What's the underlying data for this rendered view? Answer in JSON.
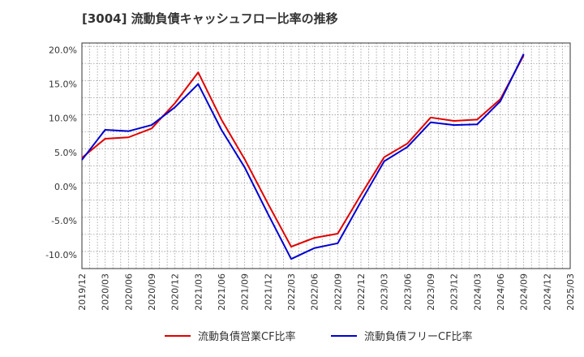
{
  "title": "[3004]  流動負債キャッシュフロー比率の推移",
  "chart_data": {
    "type": "line",
    "title": "[3004]  流動負債キャッシュフロー比率の推移",
    "xlabel": "",
    "ylabel": "",
    "ylim": [
      -12,
      21
    ],
    "y_ticks": [
      20,
      15,
      10,
      5,
      0,
      -5,
      -10
    ],
    "y_tick_labels": [
      "20.0%",
      "15.0%",
      "10.0%",
      "5.0%",
      "0.0%",
      "-5.0%",
      "-10.0%"
    ],
    "x_tick_labels": [
      "2019/12",
      "2020/03",
      "2020/06",
      "2020/09",
      "2020/12",
      "2021/03",
      "2021/06",
      "2021/09",
      "2021/12",
      "2022/03",
      "2022/06",
      "2022/09",
      "2022/12",
      "2023/03",
      "2023/06",
      "2023/09",
      "2023/12",
      "2024/03",
      "2024/06",
      "2024/09",
      "2024/12",
      "2025/03"
    ],
    "grid": true,
    "legend_position": "bottom",
    "series": [
      {
        "name": "流動負債営業CF比率",
        "color": "#e00000",
        "x": [
          "2019/12",
          "2020/03",
          "2020/06",
          "2020/09",
          "2020/12",
          "2021/03",
          "2021/06",
          "2021/09",
          "2021/12",
          "2022/03",
          "2022/06",
          "2022/09",
          "2022/12",
          "2023/03",
          "2023/06",
          "2023/09",
          "2023/12",
          "2024/03",
          "2024/06",
          "2024/09"
        ],
        "values": [
          4.2,
          7.0,
          7.2,
          8.5,
          12.2,
          16.7,
          9.8,
          4.0,
          -2.5,
          -8.8,
          -7.5,
          -6.9,
          -1.2,
          4.3,
          6.3,
          10.1,
          9.6,
          9.8,
          12.8,
          19.2
        ]
      },
      {
        "name": "流動負債フリーCF比率",
        "color": "#0000d0",
        "x": [
          "2019/12",
          "2020/03",
          "2020/06",
          "2020/09",
          "2020/12",
          "2021/03",
          "2021/06",
          "2021/09",
          "2021/12",
          "2022/03",
          "2022/06",
          "2022/09",
          "2022/12",
          "2023/03",
          "2023/06",
          "2023/09",
          "2023/12",
          "2024/03",
          "2024/06",
          "2024/09"
        ],
        "values": [
          3.9,
          8.3,
          8.1,
          9.0,
          11.6,
          15.0,
          8.3,
          2.8,
          -4.0,
          -10.6,
          -9.0,
          -8.3,
          -2.2,
          3.7,
          5.8,
          9.4,
          9.0,
          9.1,
          12.5,
          19.4
        ]
      }
    ]
  }
}
